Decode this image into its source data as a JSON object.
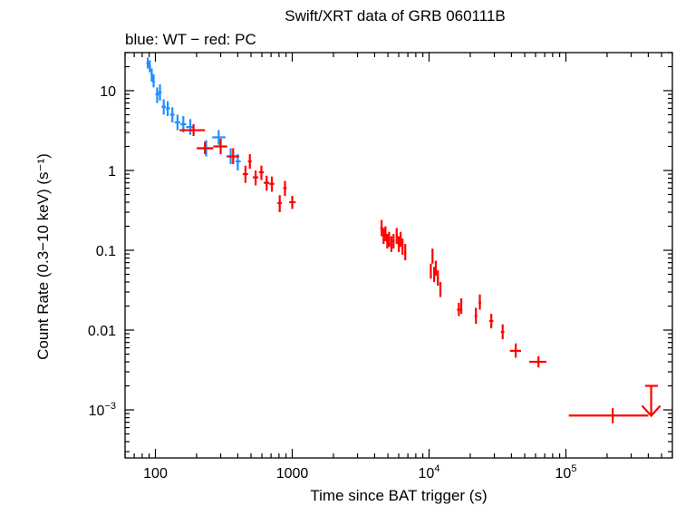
{
  "chart_data": {
    "type": "scatter",
    "title": "Swift/XRT data of GRB 060111B",
    "subtitle": "blue: WT − red: PC",
    "xlabel": "Time since BAT trigger (s)",
    "ylabel": "Count Rate (0.3−10 keV) (s⁻¹)",
    "x_scale": "log",
    "y_scale": "log",
    "xlim": [
      60,
      600000
    ],
    "ylim": [
      0.00025,
      30
    ],
    "x_ticks": [
      {
        "value": 100,
        "label": "100"
      },
      {
        "value": 1000,
        "label": "1000"
      },
      {
        "value": 10000,
        "label": "10",
        "sup": "4"
      },
      {
        "value": 100000,
        "label": "10",
        "sup": "5"
      }
    ],
    "y_ticks": [
      {
        "value": 10,
        "label": "10"
      },
      {
        "value": 1,
        "label": "1"
      },
      {
        "value": 0.1,
        "label": "0.1"
      },
      {
        "value": 0.01,
        "label": "0.01"
      },
      {
        "value": 0.001,
        "label": "10",
        "sup": "−3"
      }
    ],
    "colors": {
      "wt": "#1e90ff",
      "pc": "#ff0000",
      "axes": "#000000"
    },
    "series": [
      {
        "name": "WT",
        "color": "#1e90ff",
        "points": [
          {
            "x": 88,
            "xlo": 86,
            "xhi": 90,
            "y": 22,
            "ylo": 19,
            "yhi": 26
          },
          {
            "x": 91,
            "xlo": 89,
            "xhi": 93,
            "y": 20,
            "ylo": 17,
            "yhi": 24
          },
          {
            "x": 94,
            "xlo": 92,
            "xhi": 96,
            "y": 16,
            "ylo": 13,
            "yhi": 19
          },
          {
            "x": 97,
            "xlo": 95,
            "xhi": 99,
            "y": 13,
            "ylo": 11,
            "yhi": 16
          },
          {
            "x": 103,
            "xlo": 100,
            "xhi": 106,
            "y": 9,
            "ylo": 7,
            "yhi": 11
          },
          {
            "x": 108,
            "xlo": 105,
            "xhi": 111,
            "y": 9.5,
            "ylo": 7.5,
            "yhi": 12
          },
          {
            "x": 115,
            "xlo": 111,
            "xhi": 119,
            "y": 6.3,
            "ylo": 5.0,
            "yhi": 7.8
          },
          {
            "x": 123,
            "xlo": 119,
            "xhi": 128,
            "y": 6.0,
            "ylo": 4.8,
            "yhi": 7.4
          },
          {
            "x": 133,
            "xlo": 128,
            "xhi": 138,
            "y": 5.0,
            "ylo": 4.0,
            "yhi": 6.2
          },
          {
            "x": 145,
            "xlo": 138,
            "xhi": 152,
            "y": 4.0,
            "ylo": 3.2,
            "yhi": 5.0
          },
          {
            "x": 160,
            "xlo": 152,
            "xhi": 168,
            "y": 3.8,
            "ylo": 3.0,
            "yhi": 4.8
          },
          {
            "x": 180,
            "xlo": 168,
            "xhi": 192,
            "y": 3.5,
            "ylo": 2.8,
            "yhi": 4.4
          },
          {
            "x": 235,
            "xlo": 210,
            "xhi": 260,
            "y": 1.9,
            "ylo": 1.5,
            "yhi": 2.4
          },
          {
            "x": 290,
            "xlo": 260,
            "xhi": 325,
            "y": 2.6,
            "ylo": 2.1,
            "yhi": 3.2
          },
          {
            "x": 355,
            "xlo": 330,
            "xhi": 385,
            "y": 1.5,
            "ylo": 1.2,
            "yhi": 1.9
          },
          {
            "x": 400,
            "xlo": 385,
            "xhi": 420,
            "y": 1.3,
            "ylo": 1.0,
            "yhi": 1.6
          }
        ]
      },
      {
        "name": "PC",
        "color": "#ff0000",
        "points": [
          {
            "x": 190,
            "xlo": 150,
            "xhi": 230,
            "y": 3.2,
            "ylo": 2.7,
            "yhi": 3.8
          },
          {
            "x": 230,
            "xlo": 200,
            "xhi": 265,
            "y": 1.9,
            "ylo": 1.6,
            "yhi": 2.3
          },
          {
            "x": 300,
            "xlo": 265,
            "xhi": 335,
            "y": 2.0,
            "ylo": 1.6,
            "yhi": 2.5
          },
          {
            "x": 370,
            "xlo": 335,
            "xhi": 410,
            "y": 1.5,
            "ylo": 1.2,
            "yhi": 1.9
          },
          {
            "x": 455,
            "xlo": 435,
            "xhi": 475,
            "y": 0.9,
            "ylo": 0.7,
            "yhi": 1.15
          },
          {
            "x": 490,
            "xlo": 475,
            "xhi": 505,
            "y": 1.3,
            "ylo": 1.05,
            "yhi": 1.6
          },
          {
            "x": 540,
            "xlo": 515,
            "xhi": 565,
            "y": 0.82,
            "ylo": 0.65,
            "yhi": 1.0
          },
          {
            "x": 595,
            "xlo": 570,
            "xhi": 620,
            "y": 0.95,
            "ylo": 0.76,
            "yhi": 1.15
          },
          {
            "x": 650,
            "xlo": 620,
            "xhi": 680,
            "y": 0.7,
            "ylo": 0.56,
            "yhi": 0.86
          },
          {
            "x": 710,
            "xlo": 680,
            "xhi": 740,
            "y": 0.68,
            "ylo": 0.54,
            "yhi": 0.84
          },
          {
            "x": 810,
            "xlo": 780,
            "xhi": 840,
            "y": 0.39,
            "ylo": 0.3,
            "yhi": 0.49
          },
          {
            "x": 885,
            "xlo": 860,
            "xhi": 910,
            "y": 0.6,
            "ylo": 0.48,
            "yhi": 0.74
          },
          {
            "x": 1000,
            "xlo": 950,
            "xhi": 1060,
            "y": 0.4,
            "ylo": 0.33,
            "yhi": 0.48
          },
          {
            "x": 4500,
            "xlo": 4400,
            "xhi": 4600,
            "y": 0.19,
            "ylo": 0.15,
            "yhi": 0.24
          },
          {
            "x": 4650,
            "xlo": 4560,
            "xhi": 4740,
            "y": 0.15,
            "ylo": 0.12,
            "yhi": 0.19
          },
          {
            "x": 4800,
            "xlo": 4710,
            "xhi": 4890,
            "y": 0.16,
            "ylo": 0.13,
            "yhi": 0.2
          },
          {
            "x": 4950,
            "xlo": 4860,
            "xhi": 5040,
            "y": 0.13,
            "ylo": 0.105,
            "yhi": 0.16
          },
          {
            "x": 5100,
            "xlo": 5010,
            "xhi": 5190,
            "y": 0.14,
            "ylo": 0.11,
            "yhi": 0.17
          },
          {
            "x": 5300,
            "xlo": 5200,
            "xhi": 5400,
            "y": 0.12,
            "ylo": 0.095,
            "yhi": 0.15
          },
          {
            "x": 5500,
            "xlo": 5400,
            "xhi": 5600,
            "y": 0.13,
            "ylo": 0.105,
            "yhi": 0.16
          },
          {
            "x": 5800,
            "xlo": 5700,
            "xhi": 5900,
            "y": 0.15,
            "ylo": 0.12,
            "yhi": 0.19
          },
          {
            "x": 6000,
            "xlo": 5900,
            "xhi": 6100,
            "y": 0.12,
            "ylo": 0.095,
            "yhi": 0.15
          },
          {
            "x": 6200,
            "xlo": 6100,
            "xhi": 6300,
            "y": 0.14,
            "ylo": 0.11,
            "yhi": 0.17
          },
          {
            "x": 6400,
            "xlo": 6300,
            "xhi": 6500,
            "y": 0.11,
            "ylo": 0.088,
            "yhi": 0.14
          },
          {
            "x": 6700,
            "xlo": 6600,
            "xhi": 6800,
            "y": 0.095,
            "ylo": 0.075,
            "yhi": 0.12
          },
          {
            "x": 10300,
            "xlo": 10150,
            "xhi": 10450,
            "y": 0.055,
            "ylo": 0.044,
            "yhi": 0.068
          },
          {
            "x": 10600,
            "xlo": 10450,
            "xhi": 10750,
            "y": 0.085,
            "ylo": 0.068,
            "yhi": 0.105
          },
          {
            "x": 10900,
            "xlo": 10750,
            "xhi": 11050,
            "y": 0.05,
            "ylo": 0.04,
            "yhi": 0.062
          },
          {
            "x": 11200,
            "xlo": 11050,
            "xhi": 11350,
            "y": 0.06,
            "ylo": 0.048,
            "yhi": 0.074
          },
          {
            "x": 11600,
            "xlo": 11400,
            "xhi": 11800,
            "y": 0.045,
            "ylo": 0.036,
            "yhi": 0.056
          },
          {
            "x": 12100,
            "xlo": 11900,
            "xhi": 12300,
            "y": 0.032,
            "ylo": 0.026,
            "yhi": 0.04
          },
          {
            "x": 16500,
            "xlo": 16000,
            "xhi": 17000,
            "y": 0.018,
            "ylo": 0.015,
            "yhi": 0.022
          },
          {
            "x": 17200,
            "xlo": 17000,
            "xhi": 17400,
            "y": 0.02,
            "ylo": 0.016,
            "yhi": 0.025
          },
          {
            "x": 22000,
            "xlo": 21500,
            "xhi": 22500,
            "y": 0.015,
            "ylo": 0.012,
            "yhi": 0.019
          },
          {
            "x": 23500,
            "xlo": 23000,
            "xhi": 24000,
            "y": 0.022,
            "ylo": 0.018,
            "yhi": 0.028
          },
          {
            "x": 28500,
            "xlo": 27500,
            "xhi": 29500,
            "y": 0.013,
            "ylo": 0.0105,
            "yhi": 0.016
          },
          {
            "x": 34500,
            "xlo": 33500,
            "xhi": 35500,
            "y": 0.0095,
            "ylo": 0.0077,
            "yhi": 0.0118
          },
          {
            "x": 43000,
            "xlo": 39000,
            "xhi": 47000,
            "y": 0.0055,
            "ylo": 0.0045,
            "yhi": 0.0068
          },
          {
            "x": 63000,
            "xlo": 54000,
            "xhi": 72000,
            "y": 0.004,
            "ylo": 0.0034,
            "yhi": 0.0047
          },
          {
            "x": 220000,
            "xlo": 105000,
            "xhi": 400000,
            "y": 0.00085,
            "ylo": 0.00068,
            "yhi": 0.00105
          }
        ],
        "upper_limits": [
          {
            "x": 420000,
            "xlo": 380000,
            "xhi": 470000,
            "y": 0.002
          }
        ]
      }
    ]
  }
}
